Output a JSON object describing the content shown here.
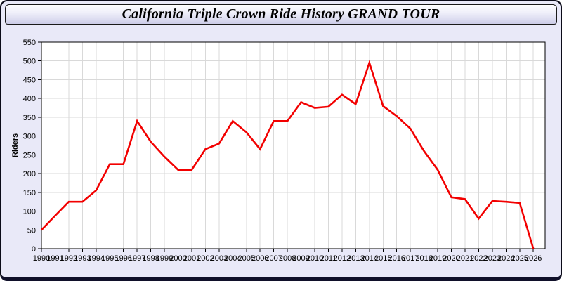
{
  "window": {
    "title": "California Triple Crown Ride History GRAND TOUR"
  },
  "colors": {
    "line": "#f20000",
    "panel_bg": "#e9e9f8",
    "plot_bg": "#ffffff",
    "grid": "#d9d9d9",
    "axis": "#000000",
    "label_text": "#000000"
  },
  "chart_data": {
    "type": "line",
    "title": "California Triple Crown Ride History GRAND TOUR",
    "xlabel": "",
    "ylabel": "Riders",
    "legend_shown": false,
    "grid": true,
    "ylim": [
      0,
      550
    ],
    "yticks": [
      0,
      50,
      100,
      150,
      200,
      250,
      300,
      350,
      400,
      450,
      500,
      550
    ],
    "x": [
      1990,
      1991,
      1992,
      1993,
      1994,
      1995,
      1996,
      1997,
      1998,
      1999,
      2000,
      2001,
      2002,
      2003,
      2004,
      2005,
      2006,
      2007,
      2008,
      2009,
      2010,
      2011,
      2012,
      2013,
      2014,
      2015,
      2016,
      2017,
      2018,
      2019,
      2020,
      2021,
      2022,
      2023,
      2024,
      2025,
      2026
    ],
    "series": [
      {
        "name": "Riders",
        "values": [
          50,
          88,
          125,
          125,
          155,
          225,
          225,
          340,
          285,
          245,
          210,
          210,
          265,
          280,
          340,
          310,
          265,
          340,
          340,
          390,
          375,
          378,
          410,
          385,
          495,
          380,
          353,
          320,
          260,
          210,
          137,
          132,
          80,
          127,
          125,
          122,
          0
        ]
      }
    ]
  }
}
